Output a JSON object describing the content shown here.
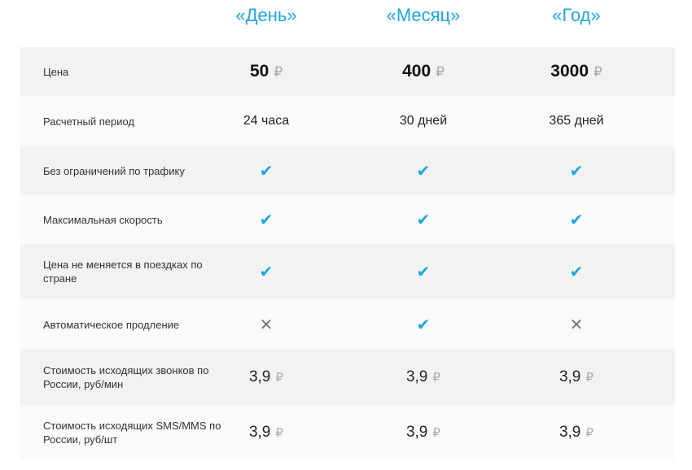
{
  "plans": [
    "«День»",
    "«Месяц»",
    "«Год»"
  ],
  "colors": {
    "accent": "#1aa7e0",
    "row_dark": "#f2f2f2",
    "row_light": "#fafafa"
  },
  "currency_symbol": "₽",
  "rows": [
    {
      "label": "Цена",
      "type": "price",
      "values": [
        "50",
        "400",
        "3000"
      ]
    },
    {
      "label": "Расчетный период",
      "type": "text",
      "values": [
        "24 часа",
        "30 дней",
        "365 дней"
      ]
    },
    {
      "label": "Без ограничений по трафику",
      "type": "bool",
      "values": [
        true,
        true,
        true
      ]
    },
    {
      "label": "Максимальная скорость",
      "type": "bool",
      "values": [
        true,
        true,
        true
      ]
    },
    {
      "label": "Цена не меняется в поездках по стране",
      "type": "bool",
      "values": [
        true,
        true,
        true
      ]
    },
    {
      "label": "Автоматическое продление",
      "type": "bool",
      "values": [
        false,
        true,
        false
      ]
    },
    {
      "label": "Стоимость исходящих звонков по России, руб/мин",
      "type": "small",
      "values": [
        "3,9",
        "3,9",
        "3,9"
      ]
    },
    {
      "label": "Стоимость исходящих SMS/MMS по России, руб/шт",
      "type": "small",
      "values": [
        "3,9",
        "3,9",
        "3,9"
      ]
    }
  ]
}
